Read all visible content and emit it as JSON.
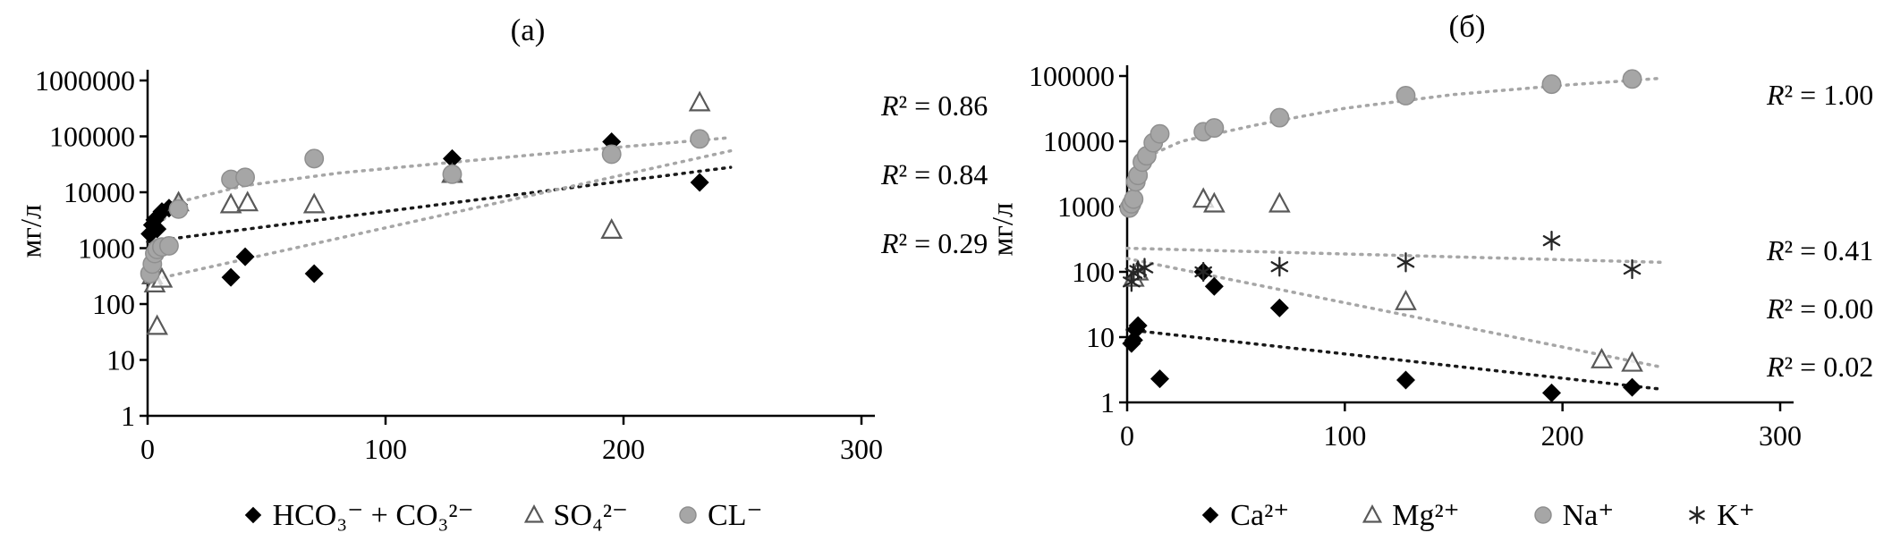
{
  "page": {
    "background": "#ffffff"
  },
  "chart_data": [
    {
      "type": "scatter",
      "title": "(а)",
      "ylabel": "мг/л",
      "y_scale": "log",
      "xlim": [
        0,
        300
      ],
      "ylim": [
        1,
        1000000
      ],
      "x_ticks": [
        0,
        100,
        200,
        300
      ],
      "y_ticks": [
        "1000000",
        "100000",
        "10000",
        "1000",
        "100",
        "10",
        "1"
      ],
      "grid": false,
      "legend_position": "bottom",
      "r2_annotations": [
        "R² = 0.86",
        "R² = 0.84",
        "R² = 0.29"
      ],
      "series": [
        {
          "name": "HCO₃⁻ + CO₃²⁻",
          "marker": "diamond",
          "color": "#000000",
          "points": [
            [
              1,
              1800
            ],
            [
              2,
              2600
            ],
            [
              3,
              3200
            ],
            [
              4,
              2200
            ],
            [
              6,
              4500
            ],
            [
              9,
              5200
            ],
            [
              13,
              6000
            ],
            [
              35,
              300
            ],
            [
              41,
              700
            ],
            [
              70,
              350
            ],
            [
              128,
              40000
            ],
            [
              195,
              80000
            ],
            [
              232,
              15000
            ]
          ],
          "trend": {
            "color": "#1a1a1a",
            "points": [
              [
                0,
                1300
              ],
              [
                245,
                28000
              ]
            ]
          }
        },
        {
          "name": "SO₄²⁻",
          "marker": "triangle",
          "color": "#595959",
          "points": [
            [
              2,
              320
            ],
            [
              3,
              230
            ],
            [
              4,
              40
            ],
            [
              6,
              280
            ],
            [
              13,
              6500
            ],
            [
              35,
              6000
            ],
            [
              42,
              6500
            ],
            [
              70,
              6000
            ],
            [
              128,
              21000
            ],
            [
              195,
              2100
            ],
            [
              232,
              400000
            ]
          ],
          "trend": {
            "color": "#a6a6a6",
            "points": [
              [
                0,
                260
              ],
              [
                245,
                55000
              ]
            ]
          }
        },
        {
          "name": "CL⁻",
          "marker": "circle",
          "color": "#a6a6a6",
          "points": [
            [
              1,
              350
            ],
            [
              2,
              520
            ],
            [
              3,
              800
            ],
            [
              4,
              950
            ],
            [
              6,
              1050
            ],
            [
              9,
              1100
            ],
            [
              13,
              5000
            ],
            [
              35,
              17000
            ],
            [
              41,
              18500
            ],
            [
              70,
              40000
            ],
            [
              128,
              21000
            ],
            [
              195,
              48000
            ],
            [
              232,
              90000
            ]
          ],
          "trend": {
            "color": "#a6a6a6",
            "points": [
              [
                1,
                700
              ],
              [
                5,
                2800
              ],
              [
                15,
                7000
              ],
              [
                40,
                13000
              ],
              [
                80,
                22000
              ],
              [
                130,
                35000
              ],
              [
                180,
                55000
              ],
              [
                245,
                95000
              ]
            ]
          }
        }
      ]
    },
    {
      "type": "scatter",
      "title": "(б)",
      "ylabel": "мг/л",
      "y_scale": "log",
      "xlim": [
        0,
        300
      ],
      "ylim": [
        1,
        100000
      ],
      "x_ticks": [
        0,
        100,
        200,
        300
      ],
      "y_ticks": [
        "100000",
        "10000",
        "1000",
        "100",
        "10",
        "1"
      ],
      "grid": false,
      "legend_position": "bottom",
      "r2_annotations": [
        "R² = 1.00",
        "R² = 0.41",
        "R² = 0.00",
        "R² = 0.02"
      ],
      "series": [
        {
          "name": "Ca²⁺",
          "marker": "diamond",
          "color": "#000000",
          "points": [
            [
              2,
              8
            ],
            [
              3,
              9
            ],
            [
              4,
              13
            ],
            [
              5,
              15
            ],
            [
              15,
              2.3
            ],
            [
              35,
              100
            ],
            [
              40,
              60
            ],
            [
              70,
              28
            ],
            [
              128,
              2.2
            ],
            [
              195,
              1.4
            ],
            [
              232,
              1.7
            ]
          ],
          "trend": {
            "color": "#1a1a1a",
            "points": [
              [
                0,
                13
              ],
              [
                245,
                1.6
              ]
            ]
          }
        },
        {
          "name": "Mg²⁺",
          "marker": "triangle",
          "color": "#595959",
          "points": [
            [
              3,
              80
            ],
            [
              5,
              100
            ],
            [
              35,
              1300
            ],
            [
              40,
              1100
            ],
            [
              70,
              1100
            ],
            [
              128,
              35
            ],
            [
              218,
              4.5
            ],
            [
              232,
              4
            ]
          ],
          "trend": {
            "color": "#a6a6a6",
            "points": [
              [
                0,
                160
              ],
              [
                245,
                3.5
              ]
            ]
          }
        },
        {
          "name": "Na⁺",
          "marker": "circle",
          "color": "#a6a6a6",
          "points": [
            [
              1,
              950
            ],
            [
              2,
              1100
            ],
            [
              3,
              1300
            ],
            [
              4,
              2400
            ],
            [
              5,
              3000
            ],
            [
              7,
              4800
            ],
            [
              9,
              6000
            ],
            [
              12,
              9500
            ],
            [
              15,
              13000
            ],
            [
              35,
              14000
            ],
            [
              40,
              16000
            ],
            [
              70,
              23000
            ],
            [
              128,
              50000
            ],
            [
              195,
              75000
            ],
            [
              232,
              90000
            ]
          ],
          "trend": {
            "color": "#a6a6a6",
            "points": [
              [
                1,
                900
              ],
              [
                4,
                2500
              ],
              [
                10,
                6000
              ],
              [
                25,
                10000
              ],
              [
                60,
                18000
              ],
              [
                100,
                32000
              ],
              [
                150,
                52000
              ],
              [
                200,
                72000
              ],
              [
                245,
                92000
              ]
            ]
          }
        },
        {
          "name": "K⁺",
          "marker": "asterisk",
          "color": "#262626",
          "points": [
            [
              2,
              70
            ],
            [
              3,
              95
            ],
            [
              5,
              105
            ],
            [
              8,
              115
            ],
            [
              35,
              100
            ],
            [
              70,
              120
            ],
            [
              128,
              140
            ],
            [
              195,
              300
            ],
            [
              232,
              110
            ]
          ],
          "trend": {
            "color": "#a6a6a6",
            "points": [
              [
                0,
                230
              ],
              [
                245,
                140
              ]
            ]
          }
        }
      ]
    }
  ]
}
